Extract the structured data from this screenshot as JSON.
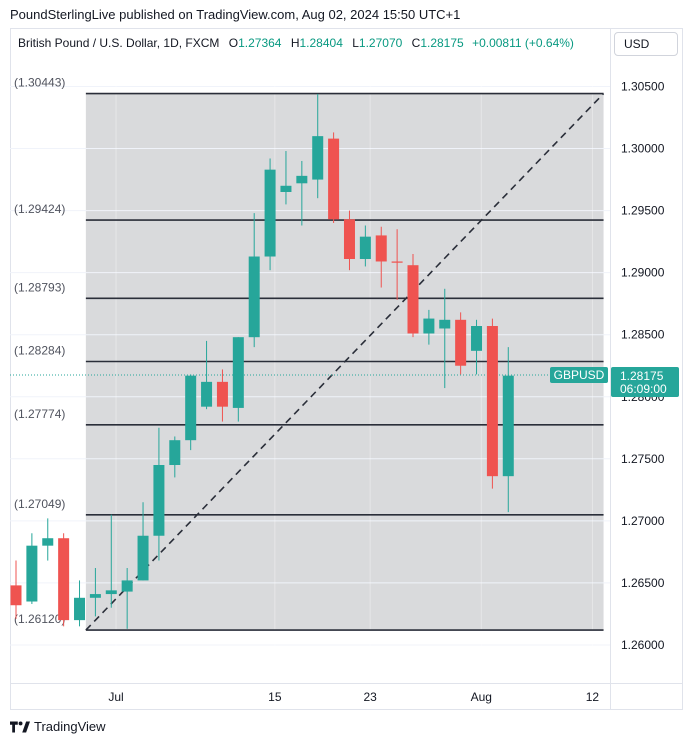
{
  "header": {
    "publisher_line": "PoundSterlingLive published on TradingView.com, Aug 02, 2024 15:50 UTC+1"
  },
  "legend": {
    "symbol": "British Pound / U.S. Dollar, 1D, FXCM",
    "open_label": "O",
    "open": "1.27364",
    "high_label": "H",
    "high": "1.28404",
    "low_label": "L",
    "low": "1.27070",
    "close_label": "C",
    "close": "1.28175",
    "change": "+0.00811 (+0.64%)"
  },
  "currency_button": {
    "label": "USD"
  },
  "footer": {
    "brand": "TradingView"
  },
  "colors": {
    "up": "#26a69a",
    "down": "#ef5350",
    "shade": "#d9dadc",
    "level": "#2a2e39",
    "price_tag": "#26a69a"
  },
  "chart_data": {
    "type": "candlestick",
    "title": "British Pound / U.S. Dollar, 1D, FXCM",
    "ylim": [
      1.2568,
      1.3092
    ],
    "x_ticks": [
      {
        "label": "Jul",
        "index": 6.3
      },
      {
        "label": "15",
        "index": 16.3
      },
      {
        "label": "23",
        "index": 22.3
      },
      {
        "label": "Aug",
        "index": 29.3
      },
      {
        "label": "12",
        "index": 36.3
      }
    ],
    "y_ticks": [
      "1.30500",
      "1.30000",
      "1.29500",
      "1.29000",
      "1.28500",
      "1.28000",
      "1.27500",
      "1.27000",
      "1.26500",
      "1.26000"
    ],
    "levels": [
      {
        "label": "(1.30443)",
        "value": 1.30443
      },
      {
        "label": "(1.29424)",
        "value": 1.29424
      },
      {
        "label": "(1.28793)",
        "value": 1.28793
      },
      {
        "label": "(1.28284)",
        "value": 1.28284
      },
      {
        "label": "(1.27774)",
        "value": 1.27774
      },
      {
        "label": "(1.27049)",
        "value": 1.27049
      },
      {
        "label": "(1.26120)",
        "value": 1.2612
      }
    ],
    "shaded_range": {
      "start_index": 4.4,
      "end_index": 37.0,
      "low": 1.2612,
      "high": 1.30443
    },
    "trendline": {
      "from": {
        "index": 4.4,
        "value": 1.2612
      },
      "to": {
        "index": 37.0,
        "value": 1.30443
      },
      "style": "dashed"
    },
    "last_price": {
      "symbol": "GBPUSD",
      "value": "1.28175",
      "countdown": "06:09:00",
      "y": 1.28175
    },
    "candles": [
      {
        "o": 1.2648,
        "h": 1.2668,
        "l": 1.2621,
        "c": 1.2632
      },
      {
        "o": 1.2635,
        "h": 1.269,
        "l": 1.2633,
        "c": 1.268
      },
      {
        "o": 1.268,
        "h": 1.2702,
        "l": 1.2668,
        "c": 1.2686
      },
      {
        "o": 1.2686,
        "h": 1.269,
        "l": 1.2615,
        "c": 1.262
      },
      {
        "o": 1.262,
        "h": 1.2652,
        "l": 1.2615,
        "c": 1.2638
      },
      {
        "o": 1.2638,
        "h": 1.2662,
        "l": 1.2623,
        "c": 1.2641
      },
      {
        "o": 1.2641,
        "h": 1.2705,
        "l": 1.263,
        "c": 1.2644
      },
      {
        "o": 1.2643,
        "h": 1.2662,
        "l": 1.2613,
        "c": 1.2652
      },
      {
        "o": 1.2652,
        "h": 1.2715,
        "l": 1.2652,
        "c": 1.2688
      },
      {
        "o": 1.2688,
        "h": 1.2775,
        "l": 1.2668,
        "c": 1.2745
      },
      {
        "o": 1.2745,
        "h": 1.2768,
        "l": 1.2735,
        "c": 1.2765
      },
      {
        "o": 1.2765,
        "h": 1.2818,
        "l": 1.2757,
        "c": 1.2817
      },
      {
        "o": 1.2792,
        "h": 1.2845,
        "l": 1.279,
        "c": 1.2812
      },
      {
        "o": 1.2812,
        "h": 1.2822,
        "l": 1.278,
        "c": 1.2792
      },
      {
        "o": 1.2791,
        "h": 1.2848,
        "l": 1.278,
        "c": 1.2848
      },
      {
        "o": 1.2848,
        "h": 1.2948,
        "l": 1.284,
        "c": 1.2913
      },
      {
        "o": 1.2913,
        "h": 1.2992,
        "l": 1.2902,
        "c": 1.2983
      },
      {
        "o": 1.2965,
        "h": 1.2998,
        "l": 1.2955,
        "c": 1.297
      },
      {
        "o": 1.2972,
        "h": 1.299,
        "l": 1.2938,
        "c": 1.2978
      },
      {
        "o": 1.2975,
        "h": 1.3044,
        "l": 1.296,
        "c": 1.301
      },
      {
        "o": 1.3008,
        "h": 1.3013,
        "l": 1.294,
        "c": 1.2943
      },
      {
        "o": 1.2943,
        "h": 1.295,
        "l": 1.2902,
        "c": 1.2911
      },
      {
        "o": 1.2911,
        "h": 1.2938,
        "l": 1.2905,
        "c": 1.2929
      },
      {
        "o": 1.293,
        "h": 1.2937,
        "l": 1.2888,
        "c": 1.2909
      },
      {
        "o": 1.2909,
        "h": 1.2935,
        "l": 1.2878,
        "c": 1.2908
      },
      {
        "o": 1.2906,
        "h": 1.2915,
        "l": 1.2848,
        "c": 1.2851
      },
      {
        "o": 1.2851,
        "h": 1.287,
        "l": 1.2842,
        "c": 1.2863
      },
      {
        "o": 1.2855,
        "h": 1.2887,
        "l": 1.2807,
        "c": 1.2862
      },
      {
        "o": 1.2862,
        "h": 1.2868,
        "l": 1.2818,
        "c": 1.2825
      },
      {
        "o": 1.2837,
        "h": 1.2862,
        "l": 1.2818,
        "c": 1.2857
      },
      {
        "o": 1.2857,
        "h": 1.2863,
        "l": 1.2726,
        "c": 1.2736
      },
      {
        "o": 1.2736,
        "h": 1.284,
        "l": 1.2707,
        "c": 1.2817
      }
    ]
  }
}
